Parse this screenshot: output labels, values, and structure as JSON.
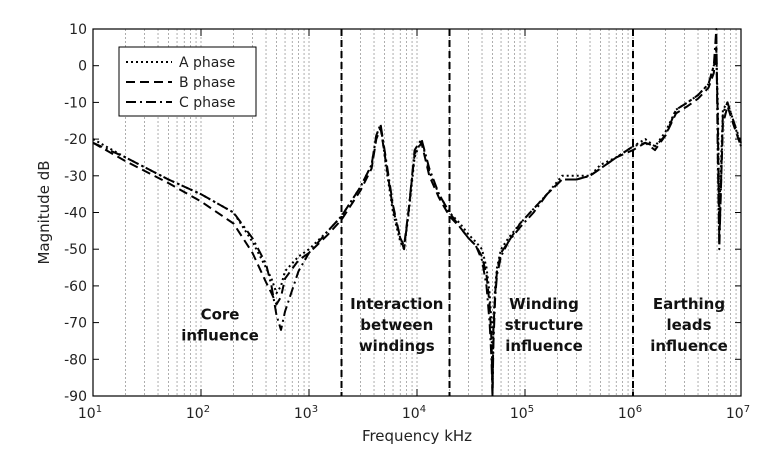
{
  "chart_data": {
    "type": "line",
    "xlabel": "Frequency kHz",
    "ylabel": "Magnitude dB",
    "xscale": "log",
    "xlim": [
      10,
      10000000
    ],
    "ylim": [
      -90,
      10
    ],
    "x_ticks": [
      {
        "base": "10",
        "exp": "1"
      },
      {
        "base": "10",
        "exp": "2"
      },
      {
        "base": "10",
        "exp": "3"
      },
      {
        "base": "10",
        "exp": "4"
      },
      {
        "base": "10",
        "exp": "5"
      },
      {
        "base": "10",
        "exp": "6"
      },
      {
        "base": "10",
        "exp": "7"
      }
    ],
    "y_ticks": [
      "10",
      "0",
      "-10",
      "-20",
      "-30",
      "-40",
      "-50",
      "-60",
      "-70",
      "-80",
      "-90"
    ],
    "grid": "vertical dotted at log minor ticks",
    "legend_position": "top-left",
    "dividers_x": [
      2000,
      20000,
      1000000
    ],
    "regions": [
      {
        "lines": [
          "Core",
          "influence"
        ],
        "x": 150
      },
      {
        "lines": [
          "Interaction",
          "between",
          "windings"
        ],
        "x": 6500
      },
      {
        "lines": [
          "Winding",
          "structure",
          "influence"
        ],
        "x": 150000
      },
      {
        "lines": [
          "Earthing",
          "leads",
          "influence"
        ],
        "x": 3300000
      }
    ],
    "series": [
      {
        "name": "A phase",
        "style": "dotted",
        "x": [
          10,
          20,
          50,
          100,
          200,
          300,
          400,
          450,
          500,
          550,
          600,
          800,
          1000,
          1500,
          2000,
          3000,
          3800,
          4200,
          4600,
          5200,
          6000,
          7000,
          7600,
          8400,
          9500,
          11000,
          13000,
          16000,
          20000,
          25000,
          30000,
          35000,
          40000,
          44000,
          47000,
          49000,
          50000,
          51000,
          53000,
          55000,
          60000,
          70000,
          90000,
          120000,
          160000,
          220000,
          300000,
          400000,
          500000,
          700000,
          1000000,
          1300000,
          1600000,
          2000000,
          2500000,
          3200000,
          4000000,
          5000000,
          5600000,
          5900000,
          6100000,
          6300000,
          6800000,
          7500000,
          8500000,
          10000000
        ],
        "y": [
          -20,
          -25,
          -31,
          -35,
          -40,
          -48,
          -55,
          -58,
          -62,
          -60,
          -56,
          -52,
          -50,
          -45,
          -41,
          -33,
          -27,
          -19,
          -16,
          -28,
          -40,
          -48,
          -50,
          -40,
          -25,
          -20,
          -29,
          -35,
          -40,
          -43,
          -46,
          -48,
          -50,
          -55,
          -62,
          -70,
          -89,
          -70,
          -60,
          -55,
          -50,
          -47,
          -43,
          -39,
          -35,
          -30,
          -30,
          -30,
          -27,
          -25,
          -22,
          -20,
          -22,
          -18,
          -12,
          -10,
          -8,
          -5,
          0,
          3,
          -10,
          -40,
          -12,
          -10,
          -15,
          -22
        ]
      },
      {
        "name": "B phase",
        "style": "dashed",
        "x": [
          10,
          20,
          50,
          100,
          200,
          300,
          400,
          450,
          500,
          550,
          600,
          800,
          1000,
          1500,
          2000,
          3000,
          3800,
          4200,
          4600,
          5200,
          6000,
          7000,
          7600,
          8400,
          9500,
          11000,
          13000,
          16000,
          20000,
          25000,
          30000,
          35000,
          40000,
          44000,
          47000,
          49000,
          50000,
          51000,
          53000,
          55000,
          60000,
          70000,
          90000,
          120000,
          160000,
          220000,
          300000,
          400000,
          500000,
          700000,
          1000000,
          1300000,
          1600000,
          2000000,
          2500000,
          3200000,
          4000000,
          5000000,
          5600000,
          5900000,
          6100000,
          6300000,
          6800000,
          7500000,
          8500000,
          10000000
        ],
        "y": [
          -21,
          -26,
          -32,
          -37,
          -43,
          -51,
          -59,
          -62,
          -65,
          -63,
          -58,
          -53,
          -51,
          -46,
          -42,
          -34,
          -28,
          -20,
          -17,
          -27,
          -39,
          -47,
          -49,
          -39,
          -24,
          -21,
          -30,
          -36,
          -41,
          -44,
          -47,
          -49,
          -52,
          -57,
          -65,
          -75,
          -90,
          -72,
          -62,
          -56,
          -51,
          -48,
          -43,
          -39,
          -35,
          -31,
          -31,
          -30,
          -28,
          -25,
          -23,
          -21,
          -23,
          -19,
          -13,
          -11,
          -9,
          -6,
          -2,
          5,
          -15,
          -48,
          -16,
          -11,
          -16,
          -22
        ]
      },
      {
        "name": "C phase",
        "style": "dashdot",
        "x": [
          10,
          20,
          50,
          100,
          200,
          300,
          400,
          450,
          500,
          550,
          600,
          800,
          1000,
          1500,
          2000,
          3000,
          3800,
          4200,
          4600,
          5200,
          6000,
          7000,
          7600,
          8400,
          9500,
          11000,
          13000,
          16000,
          20000,
          25000,
          30000,
          35000,
          40000,
          44000,
          47000,
          49000,
          50000,
          51000,
          53000,
          55000,
          60000,
          70000,
          90000,
          120000,
          160000,
          220000,
          300000,
          400000,
          500000,
          700000,
          1000000,
          1300000,
          1600000,
          2000000,
          2500000,
          3200000,
          4000000,
          5000000,
          5600000,
          5900000,
          6100000,
          6300000,
          6800000,
          7500000,
          8500000,
          10000000
        ],
        "y": [
          -21,
          -25,
          -31,
          -35,
          -40,
          -47,
          -54,
          -60,
          -68,
          -72,
          -67,
          -56,
          -51,
          -45,
          -41,
          -33,
          -27,
          -19,
          -16,
          -26,
          -38,
          -47,
          -50,
          -39,
          -23,
          -20,
          -28,
          -35,
          -40,
          -44,
          -47,
          -49,
          -53,
          -60,
          -70,
          -80,
          -90,
          -76,
          -63,
          -57,
          -52,
          -48,
          -44,
          -40,
          -35,
          -31,
          -31,
          -30,
          -28,
          -25,
          -22,
          -21,
          -22,
          -19,
          -12,
          -10,
          -8,
          -5,
          0,
          10,
          -25,
          -50,
          -13,
          -10,
          -15,
          -21
        ]
      }
    ]
  }
}
